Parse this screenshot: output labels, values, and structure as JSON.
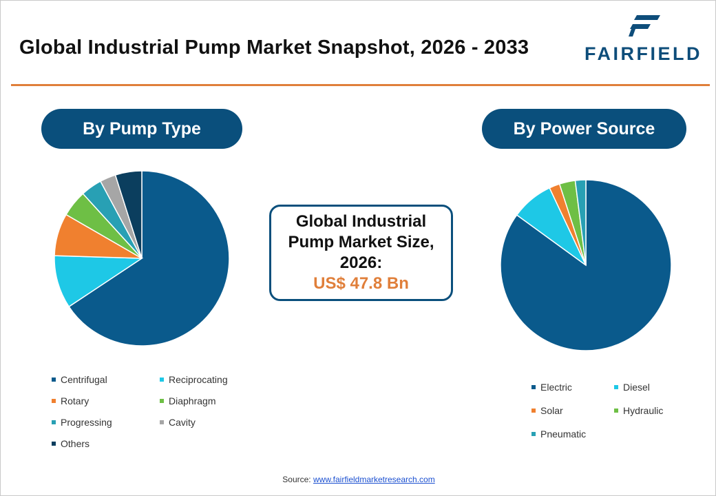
{
  "header": {
    "title": "Global Industrial Pump Market Snapshot, 2026 - 2033",
    "logo_text": "FAIRFIELD",
    "accent_color": "#e07f3a",
    "brand_color": "#0a4f7c"
  },
  "center": {
    "label": "Global Industrial Pump Market Size, 2026:",
    "value": "US$ 47.8 Bn"
  },
  "footer": {
    "source_label": "Source:",
    "source_link": "www.fairfieldmarketresearch.com"
  },
  "chart_data": [
    {
      "type": "pie",
      "title": "By Pump Type",
      "labels": [
        "Centrifugal",
        "Reciprocating",
        "Rotary",
        "Diaphragm",
        "Progressing",
        "Cavity",
        "Others"
      ],
      "values": [
        67,
        10,
        8,
        5,
        4,
        3,
        5
      ],
      "colors": [
        "#0a5a8c",
        "#1ec8e6",
        "#f0802f",
        "#6ebf45",
        "#28a0b4",
        "#a6a6a6",
        "#0b3e5e"
      ],
      "legend_position": "bottom"
    },
    {
      "type": "pie",
      "title": "By Power Source",
      "labels": [
        "Electric",
        "Diesel",
        "Solar",
        "Hydraulic",
        "Pneumatic"
      ],
      "values": [
        85,
        8,
        2,
        3,
        2
      ],
      "colors": [
        "#0a5a8c",
        "#1ec8e6",
        "#f0802f",
        "#6ebf45",
        "#28a0b4"
      ],
      "legend_position": "bottom"
    }
  ]
}
